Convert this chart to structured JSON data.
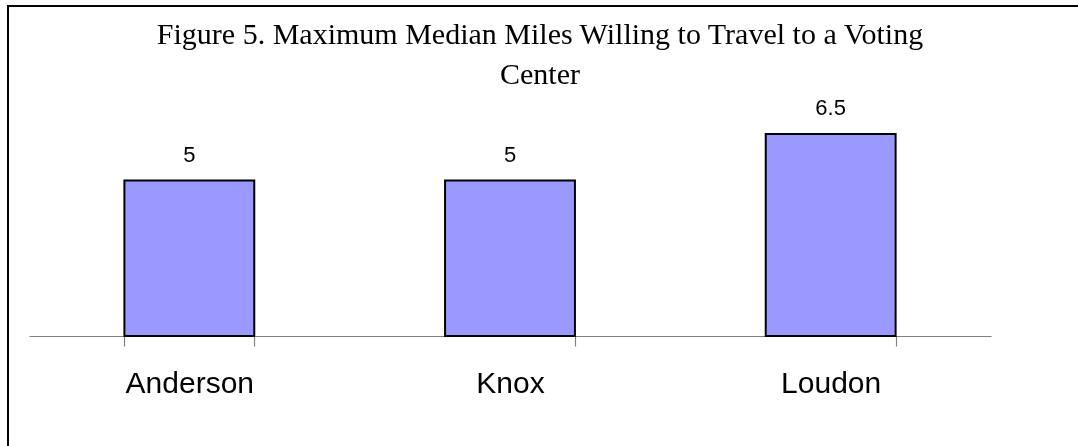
{
  "chart_data": {
    "type": "bar",
    "title": "Figure 5. Maximum Median Miles Willing to Travel to a Voting Center",
    "categories": [
      "Anderson",
      "Knox",
      "Loudon"
    ],
    "values": [
      5,
      5,
      6.5
    ],
    "color": "#9999ff",
    "data_labels": true
  }
}
